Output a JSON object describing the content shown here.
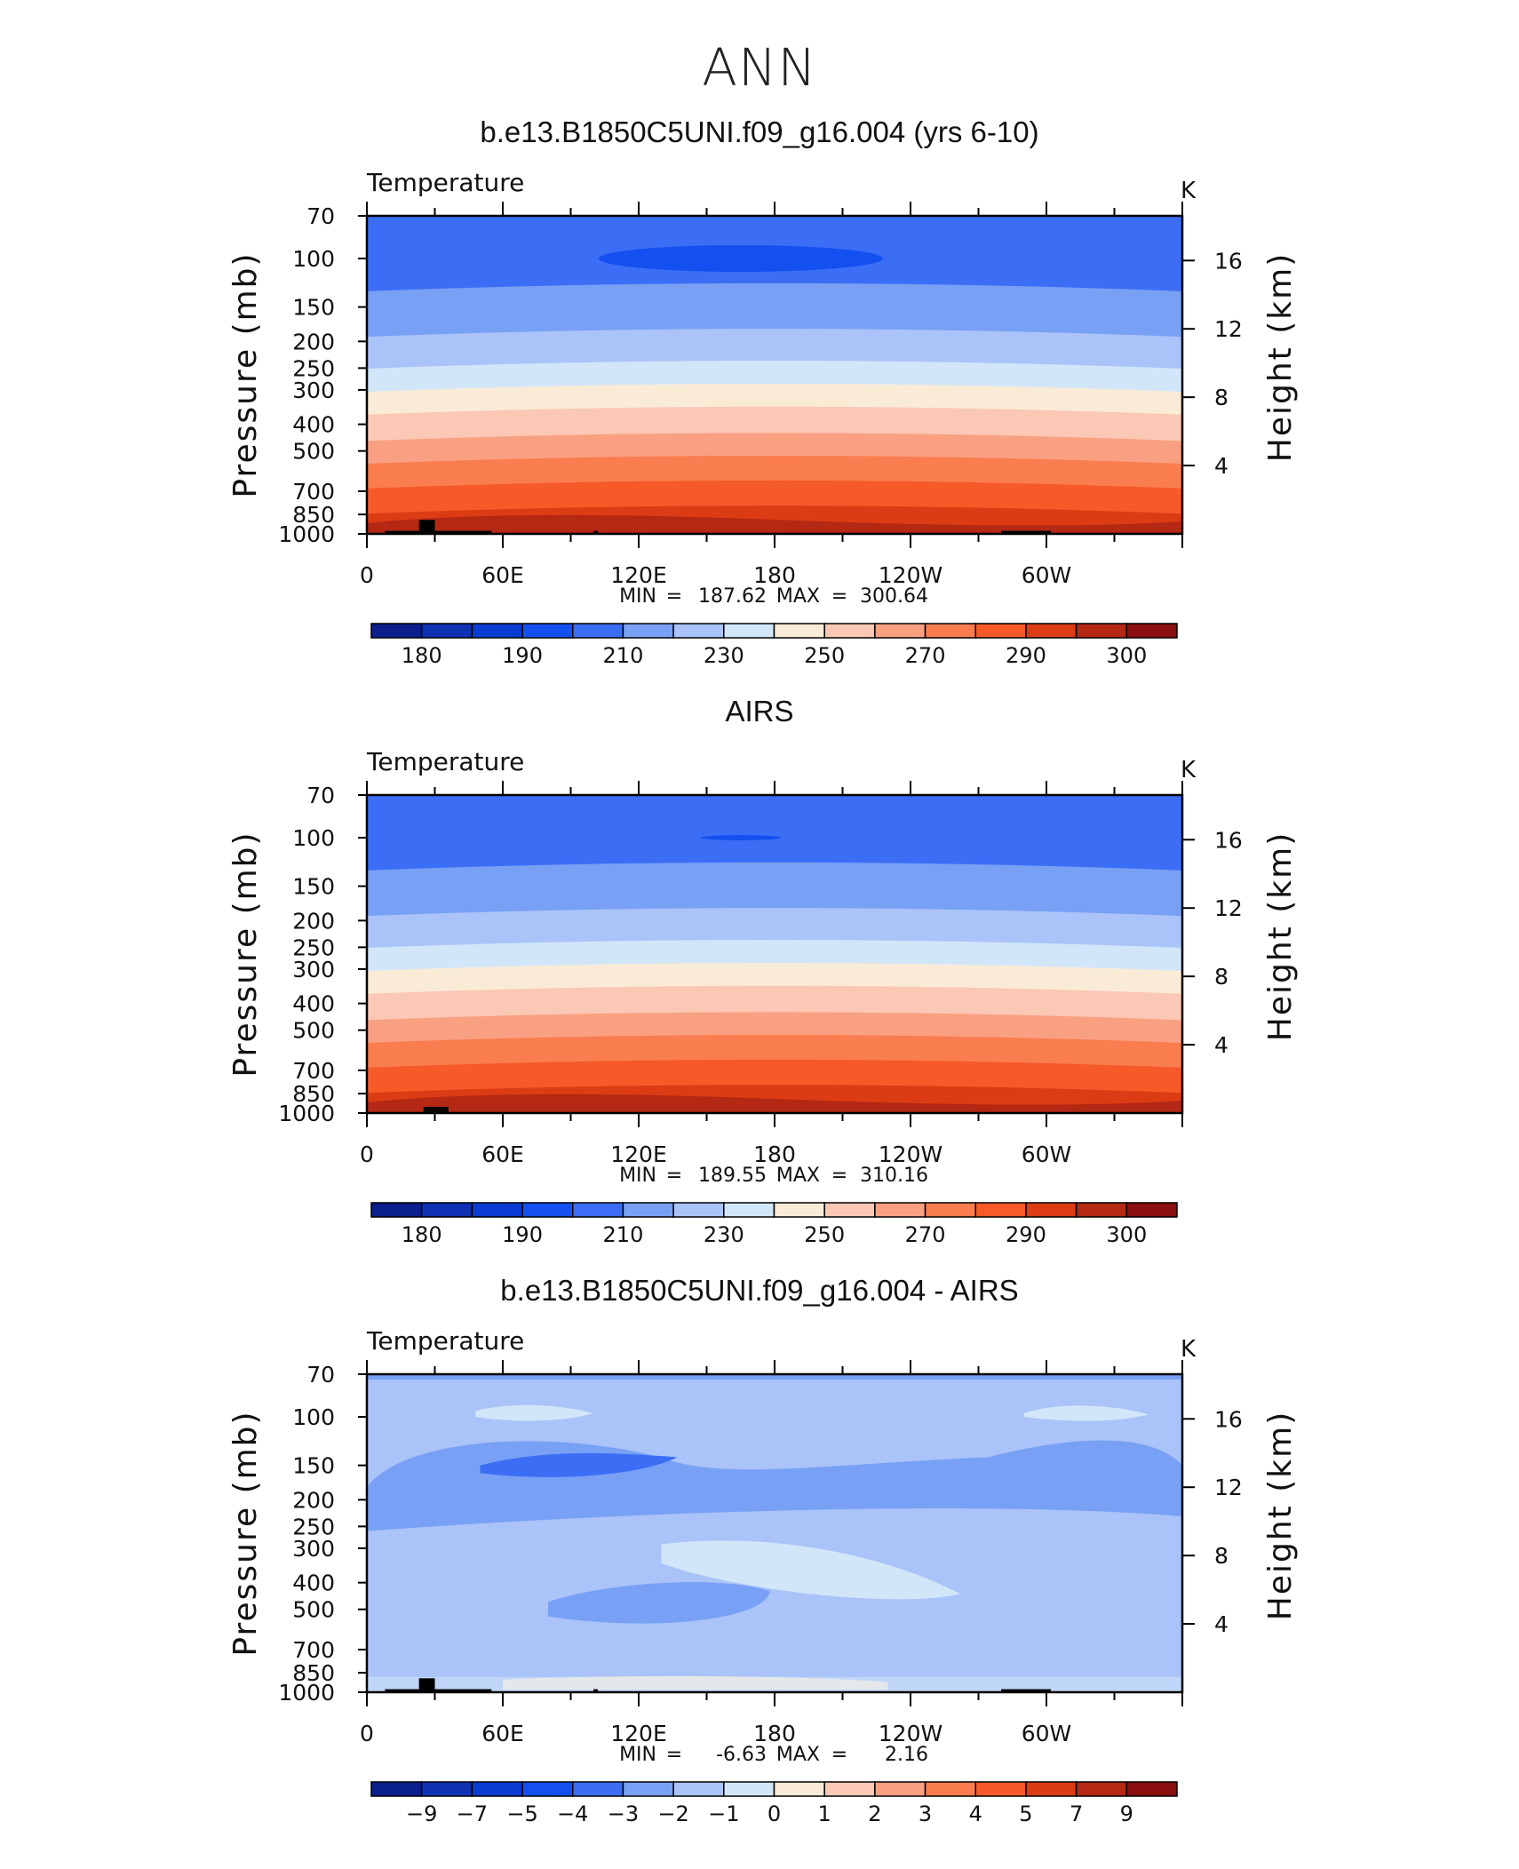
{
  "figure": {
    "title": "ANN"
  },
  "chart_data": [
    {
      "type": "heatmap",
      "panel_title": "b.e13.B1850C5UNI.f09_g16.004 (yrs 6-10)",
      "variable": "Temperature",
      "units": "K",
      "ylabel": "Pressure (mb)",
      "ylabel_right": "Height (km)",
      "pressure_ticks": [
        "70",
        "100",
        "150",
        "200",
        "250",
        "300",
        "400",
        "500",
        "700",
        "850",
        "1000"
      ],
      "height_ticks": [
        "16",
        "12",
        "8",
        "4"
      ],
      "x_ticks": [
        "0",
        "60E",
        "120E",
        "180",
        "120W",
        "60W"
      ],
      "stats": {
        "min_label": "MIN",
        "min": "187.62",
        "max_label": "MAX",
        "max": "300.64"
      },
      "colorbar_labels": [
        "180",
        "190",
        "210",
        "230",
        "250",
        "270",
        "290",
        "300"
      ],
      "colorbar_colors": [
        "#0a1e8c",
        "#0f32b4",
        "#0a3cd2",
        "#1450f0",
        "#3c6ef5",
        "#78a0f5",
        "#aac3f8",
        "#d2e6fa",
        "#faebd7",
        "#fac8b4",
        "#faa082",
        "#fa7d50",
        "#f55a28",
        "#dc3c14",
        "#b42814",
        "#8c0f0f"
      ]
    },
    {
      "type": "heatmap",
      "panel_title": "AIRS",
      "variable": "Temperature",
      "units": "K",
      "ylabel": "Pressure (mb)",
      "ylabel_right": "Height (km)",
      "pressure_ticks": [
        "70",
        "100",
        "150",
        "200",
        "250",
        "300",
        "400",
        "500",
        "700",
        "850",
        "1000"
      ],
      "height_ticks": [
        "16",
        "12",
        "8",
        "4"
      ],
      "x_ticks": [
        "0",
        "60E",
        "120E",
        "180",
        "120W",
        "60W"
      ],
      "stats": {
        "min_label": "MIN",
        "min": "189.55",
        "max_label": "MAX",
        "max": "310.16"
      },
      "colorbar_labels": [
        "180",
        "190",
        "210",
        "230",
        "250",
        "270",
        "290",
        "300"
      ],
      "colorbar_colors": [
        "#0a1e8c",
        "#0f32b4",
        "#0a3cd2",
        "#1450f0",
        "#3c6ef5",
        "#78a0f5",
        "#aac3f8",
        "#d2e6fa",
        "#faebd7",
        "#fac8b4",
        "#faa082",
        "#fa7d50",
        "#f55a28",
        "#dc3c14",
        "#b42814",
        "#8c0f0f"
      ]
    },
    {
      "type": "heatmap",
      "panel_title": "b.e13.B1850C5UNI.f09_g16.004 - AIRS",
      "variable": "Temperature",
      "units": "K",
      "ylabel": "Pressure (mb)",
      "ylabel_right": "Height (km)",
      "pressure_ticks": [
        "70",
        "100",
        "150",
        "200",
        "250",
        "300",
        "400",
        "500",
        "700",
        "850",
        "1000"
      ],
      "height_ticks": [
        "16",
        "12",
        "8",
        "4"
      ],
      "x_ticks": [
        "0",
        "60E",
        "120E",
        "180",
        "120W",
        "60W"
      ],
      "stats": {
        "min_label": "MIN",
        "min": "-6.63",
        "max_label": "MAX",
        "max": "2.16"
      },
      "colorbar_labels": [
        "−9",
        "−7",
        "−5",
        "−4",
        "−3",
        "−2",
        "−1",
        "0",
        "1",
        "2",
        "3",
        "4",
        "5",
        "7",
        "9"
      ],
      "colorbar_colors": [
        "#0a1e8c",
        "#0f32b4",
        "#0a3cd2",
        "#1450f0",
        "#3c6ef5",
        "#78a0f5",
        "#aac3f8",
        "#d2e6fa",
        "#faebd7",
        "#fac8b4",
        "#faa082",
        "#fa7d50",
        "#f55a28",
        "#dc3c14",
        "#b42814",
        "#8c0f0f"
      ]
    }
  ]
}
